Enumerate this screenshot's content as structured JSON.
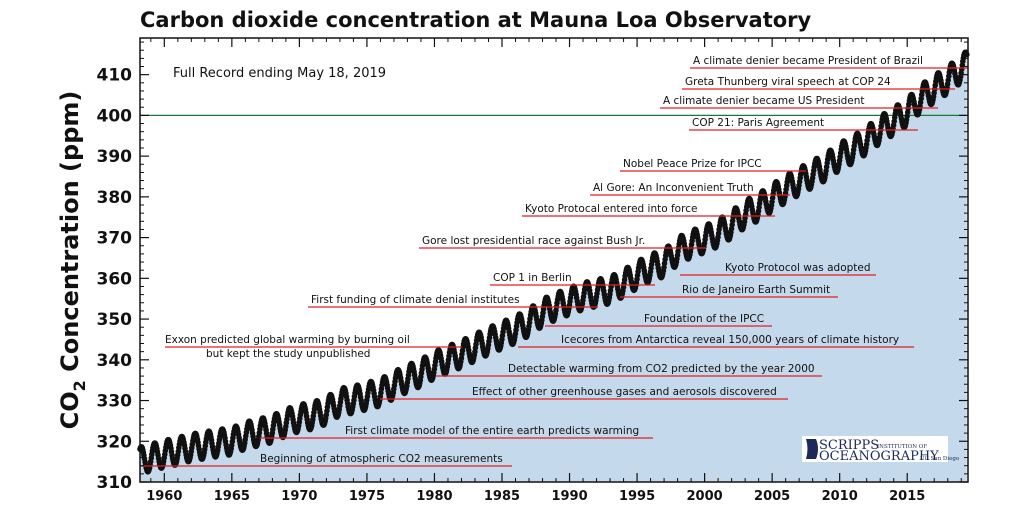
{
  "chart_data": {
    "type": "scatter",
    "title": "Carbon dioxide concentration at Mauna Loa Observatory",
    "subtitle": "Full Record ending May 18, 2019",
    "ylabel_main": "CO",
    "ylabel_sub": "2",
    "ylabel_rest": " Concentration (ppm)",
    "xlim": [
      1958.2,
      2019.5
    ],
    "ylim": [
      310,
      419
    ],
    "xticks": [
      1960,
      1965,
      1970,
      1975,
      1980,
      1985,
      1990,
      1995,
      2000,
      2005,
      2010,
      2015
    ],
    "xtick_labels": [
      "1960",
      "1965",
      "1970",
      "1975",
      "1980",
      "1985",
      "1990",
      "1995",
      "2000",
      "2005",
      "2010",
      "2015"
    ],
    "yticks": [
      310,
      320,
      330,
      340,
      350,
      360,
      370,
      380,
      390,
      400,
      410
    ],
    "ytick_labels": [
      "310",
      "320",
      "330",
      "340",
      "350",
      "360",
      "370",
      "380",
      "390",
      "400",
      "410"
    ],
    "reference_line": {
      "y": 400,
      "color": "#1a7a3a"
    },
    "series": [
      {
        "marker_color": "#111111",
        "fill_color": "#c5d9ec",
        "annual_mean_x": [
          1959,
          1960,
          1961,
          1962,
          1963,
          1964,
          1965,
          1966,
          1967,
          1968,
          1969,
          1970,
          1971,
          1972,
          1973,
          1974,
          1975,
          1976,
          1977,
          1978,
          1979,
          1980,
          1981,
          1982,
          1983,
          1984,
          1985,
          1986,
          1987,
          1988,
          1989,
          1990,
          1991,
          1992,
          1993,
          1994,
          1995,
          1996,
          1997,
          1998,
          1999,
          2000,
          2001,
          2002,
          2003,
          2004,
          2005,
          2006,
          2007,
          2008,
          2009,
          2010,
          2011,
          2012,
          2013,
          2014,
          2015,
          2016,
          2017,
          2018,
          2019
        ],
        "annual_mean_y": [
          316.0,
          316.9,
          317.6,
          318.5,
          319.0,
          319.6,
          320.0,
          321.4,
          322.2,
          323.0,
          324.6,
          325.7,
          326.3,
          327.5,
          329.7,
          330.2,
          331.1,
          332.0,
          333.8,
          335.4,
          336.8,
          338.7,
          340.1,
          341.4,
          343.0,
          344.6,
          346.0,
          347.4,
          349.2,
          351.6,
          353.1,
          354.4,
          355.6,
          356.4,
          357.1,
          358.8,
          360.8,
          362.6,
          363.7,
          366.7,
          368.4,
          369.6,
          371.1,
          373.2,
          375.8,
          377.5,
          379.8,
          381.9,
          383.8,
          385.6,
          387.4,
          389.9,
          391.6,
          393.9,
          396.5,
          398.6,
          400.8,
          404.2,
          406.5,
          408.7,
          411.4
        ],
        "seasonal_amplitude": 3.3
      }
    ],
    "annotations": [
      {
        "text": "A climate denier became President of Brazil",
        "year": 2019,
        "y": 411.6
      },
      {
        "text": "Greta Thunberg viral speech at COP 24",
        "year": 2018,
        "y": 406.9
      },
      {
        "text": "A climate denier became US President",
        "year": 2016,
        "y": 402.5
      },
      {
        "text": "COP 21: Paris Agreement",
        "year": 2015,
        "y": 397.2
      },
      {
        "text": "Nobel Peace Prize for IPCC",
        "year": 2007,
        "y": 386.9
      },
      {
        "text": "Al Gore: An Inconvenient Truth",
        "year": 2006,
        "y": 380.8
      },
      {
        "text": "Kyoto Protocal entered into force",
        "year": 2005,
        "y": 375.9
      },
      {
        "text": "Gore lost presidential race against Bush Jr.",
        "year": 2000,
        "y": 367.8
      },
      {
        "text": "Kyoto Protocol was adopted",
        "year": 1997,
        "y": 361.8
      },
      {
        "text": "COP 1 in Berlin",
        "year": 1995,
        "y": 359.0
      },
      {
        "text": "Rio de Janeiro Earth Summit",
        "year": 1992,
        "y": 356.3
      },
      {
        "text": "First funding of climate denial institutes",
        "year": 1989,
        "y": 353.7
      },
      {
        "text": "Foundation of the IPCC",
        "year": 1988,
        "y": 349.9
      },
      {
        "text": "Icecores from Antarctica reveal 150,000 years of climate history",
        "year": 1987,
        "y": 343.9
      },
      {
        "text": "Exxon predicted global warming by burning oil",
        "text2": "but kept the study unpublished",
        "year": 1982,
        "y": 343.9
      },
      {
        "text": "Detectable warming from CO2 predicted by the year 2000",
        "year": 1980,
        "y": 337.9
      },
      {
        "text": "Effect of other greenhouse gases and aerosols discovered",
        "year": 1976,
        "y": 332.0
      },
      {
        "text": "First climate model of the entire earth predicts warming",
        "year": 1967,
        "y": 322.1
      },
      {
        "text": "Beginning of atmospheric CO2 measurements",
        "year": 1958,
        "y": 315.2
      }
    ],
    "annotation_line_color": "#e02020",
    "grid": false,
    "legend": "none"
  },
  "logo": {
    "line1_big": "SCRIPPS",
    "line1_small": "INSTITUTION OF",
    "line2_big": "OCEANOGRAPHY",
    "line2_small": "UC San Diego"
  }
}
